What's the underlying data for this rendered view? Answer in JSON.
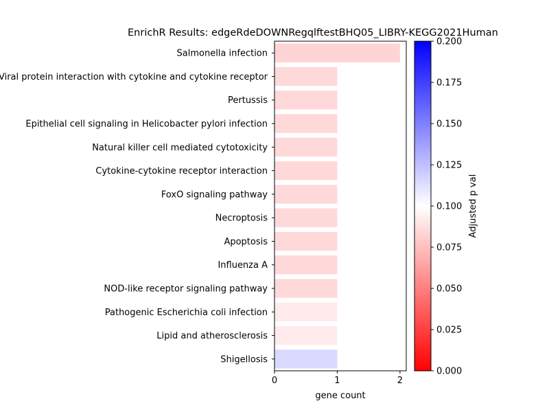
{
  "chart_data": {
    "type": "bar",
    "orientation": "horizontal",
    "title": "EnrichR Results: edgeRdeDOWNRegqlftestBHQ05_LIBRY-KEGG2021Human",
    "xlabel": "gene count",
    "ylabel": "",
    "xlim": [
      0,
      2.1
    ],
    "xticks": [
      0,
      1,
      2
    ],
    "categories": [
      "Salmonella infection",
      "Viral protein interaction with cytokine and cytokine receptor",
      "Pertussis",
      "Epithelial cell signaling in Helicobacter pylori infection",
      "Natural killer cell mediated cytotoxicity",
      "Cytokine-cytokine receptor interaction",
      "FoxO signaling pathway",
      "Necroptosis",
      "Apoptosis",
      "Influenza A",
      "NOD-like receptor signaling pathway",
      "Pathogenic Escherichia coli infection",
      "Lipid and atherosclerosis",
      "Shigellosis"
    ],
    "values": [
      2,
      1,
      1,
      1,
      1,
      1,
      1,
      1,
      1,
      1,
      1,
      1,
      1,
      1
    ],
    "adjusted_p_values": [
      0.083,
      0.085,
      0.085,
      0.085,
      0.085,
      0.085,
      0.085,
      0.085,
      0.085,
      0.085,
      0.085,
      0.092,
      0.092,
      0.115
    ],
    "colorbar": {
      "label": "Adjusted p val",
      "range": [
        0,
        0.2
      ],
      "ticks": [
        "0.000",
        "0.025",
        "0.050",
        "0.075",
        "0.100",
        "0.125",
        "0.150",
        "0.175",
        "0.200"
      ],
      "colormap": [
        "#ff0000",
        "#ffffff",
        "#0000ff"
      ]
    },
    "grid": false
  }
}
